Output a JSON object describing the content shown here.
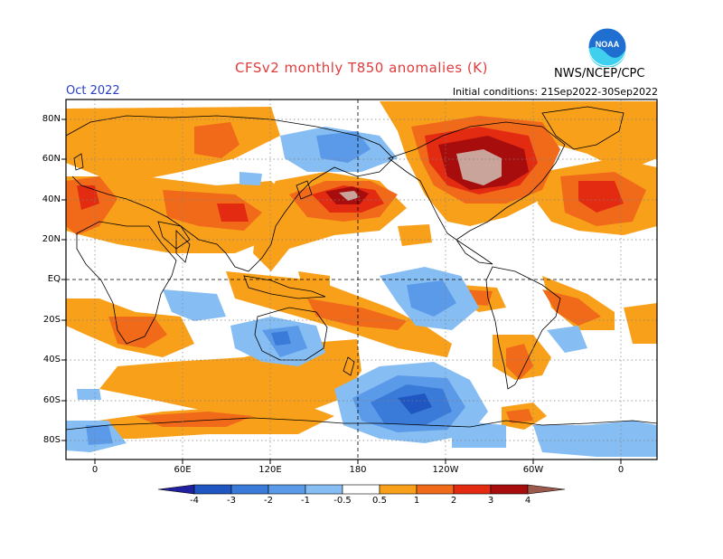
{
  "header": {
    "title": "CFSv2 monthly T850 anomalies (K)",
    "month": "Oct 2022",
    "initial_conditions": "Initial conditions: 21Sep2022-30Sep2022",
    "agency": "NWS/NCEP/CPC",
    "logo_text": "NOAA"
  },
  "map": {
    "lat_labels": [
      "80N",
      "60N",
      "40N",
      "20N",
      "EQ",
      "20S",
      "40S",
      "60S",
      "80S"
    ],
    "lon_labels": [
      "0",
      "60E",
      "120E",
      "180",
      "120W",
      "60W",
      "0"
    ]
  },
  "colorbar": {
    "labels": [
      "-4",
      "-3",
      "-2",
      "-1",
      "-0.5",
      "0.5",
      "1",
      "2",
      "3",
      "4"
    ],
    "colors": [
      "#2020a0",
      "#1f56c2",
      "#3a7ad8",
      "#5a9ae8",
      "#86bdf2",
      "#ffffff",
      "#f9a01b",
      "#f06a1a",
      "#e32b12",
      "#a80d0d",
      "#c9a49a",
      "#9c5a4c"
    ]
  },
  "colors": {
    "warm1": "#f9a01b",
    "warm2": "#f06a1a",
    "warm3": "#e32b12",
    "warm4": "#a80d0d",
    "warm5": "#c9a49a",
    "cool1": "#86bdf2",
    "cool2": "#5a9ae8",
    "cool3": "#3a7ad8",
    "cool4": "#1f56c2"
  }
}
